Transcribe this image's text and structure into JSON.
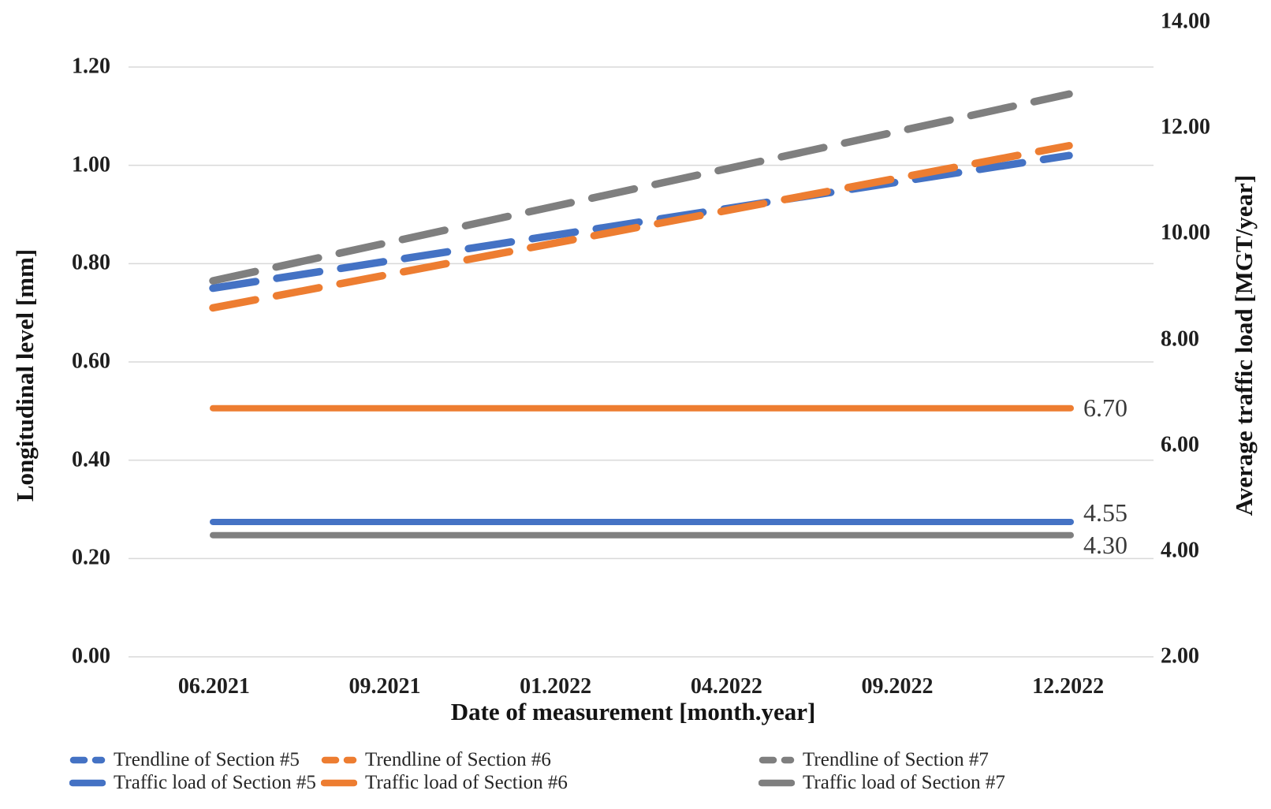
{
  "chart_data": {
    "type": "line",
    "title": "",
    "xlabel": "Date of measurement [month.year]",
    "ylabel_left": "Longitudinal level [mm]",
    "ylabel_right": "Average traffic load [MGT/year]",
    "x_categories": [
      "06.2021",
      "09.2021",
      "01.2022",
      "04.2022",
      "09.2022",
      "12.2022"
    ],
    "left_axis": {
      "tick_labels": [
        "1.20",
        "1.00",
        "0.80",
        "0.60",
        "0.40",
        "0.20",
        "0.00"
      ],
      "range": [
        0.0,
        1.3
      ],
      "grid": true
    },
    "right_axis": {
      "tick_labels": [
        "14.00",
        "12.00",
        "10.00",
        "8.00",
        "6.00",
        "4.00",
        "2.00"
      ],
      "range": [
        2.0,
        14.0
      ],
      "grid": false
    },
    "legend_position": "bottom",
    "series": [
      {
        "name": "Trendline of Section #5",
        "kind": "trendline",
        "axis": "left",
        "line_style": "dashed",
        "color": "#4472C4",
        "x_range": [
          "06.2021",
          "12.2022"
        ],
        "start_value": 0.75,
        "end_value": 1.02
      },
      {
        "name": "Trendline of Section #6",
        "kind": "trendline",
        "axis": "left",
        "line_style": "dashed",
        "color": "#ED7D31",
        "x_range": [
          "06.2021",
          "12.2022"
        ],
        "start_value": 0.71,
        "end_value": 1.04
      },
      {
        "name": "Trendline of Section #7",
        "kind": "trendline",
        "axis": "left",
        "line_style": "dashed",
        "color": "#7F7F7F",
        "x_range": [
          "06.2021",
          "12.2022"
        ],
        "start_value": 0.765,
        "end_value": 1.145
      },
      {
        "name": "Traffic load of Section #5",
        "kind": "constant",
        "axis": "right",
        "line_style": "solid",
        "color": "#4472C4",
        "value": 4.55,
        "data_label": "4.55"
      },
      {
        "name": "Traffic load of Section #6",
        "kind": "constant",
        "axis": "right",
        "line_style": "solid",
        "color": "#ED7D31",
        "value": 6.7,
        "data_label": "6.70"
      },
      {
        "name": "Traffic load of Section #7",
        "kind": "constant",
        "axis": "right",
        "line_style": "solid",
        "color": "#7F7F7F",
        "value": 4.3,
        "data_label": "4.30"
      }
    ],
    "gridline_color": "#D9D9D9"
  }
}
